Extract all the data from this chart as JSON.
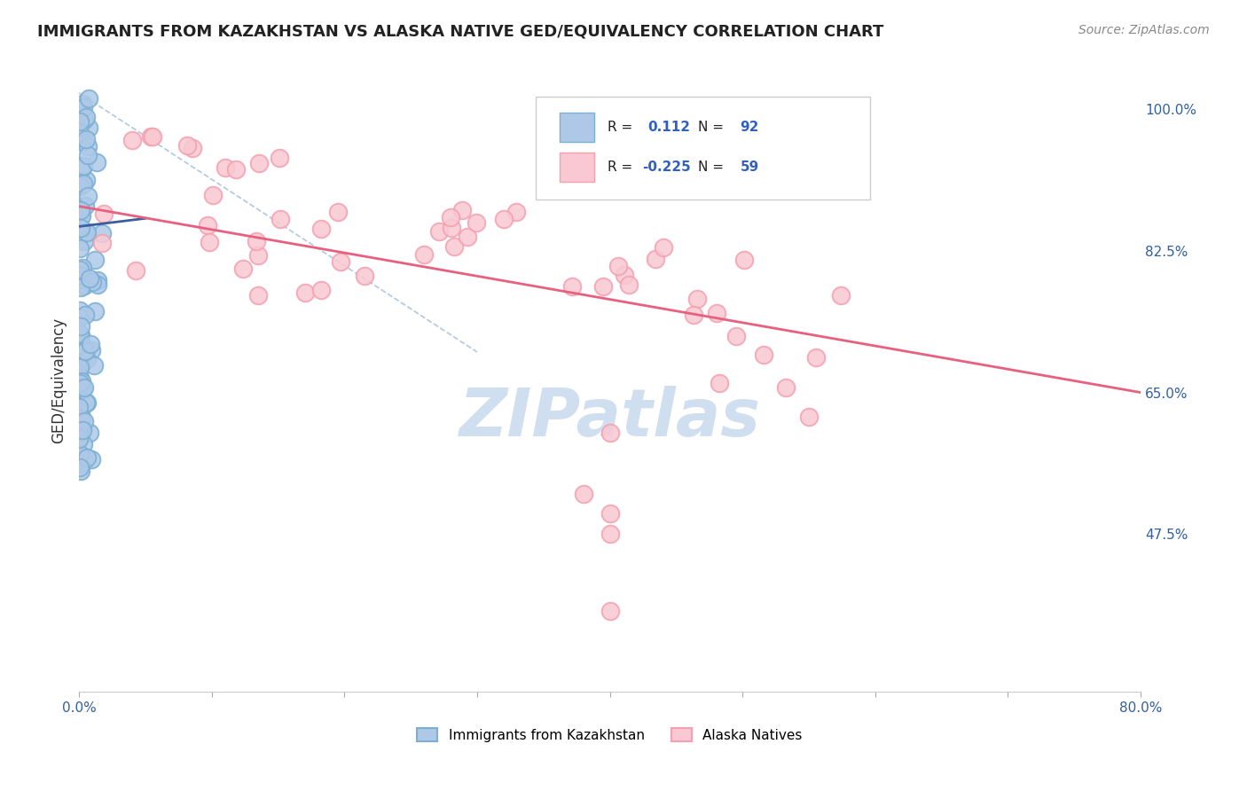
{
  "title": "IMMIGRANTS FROM KAZAKHSTAN VS ALASKA NATIVE GED/EQUIVALENCY CORRELATION CHART",
  "source": "Source: ZipAtlas.com",
  "ylabel": "GED/Equivalency",
  "ytick_labels": [
    "47.5%",
    "65.0%",
    "82.5%",
    "100.0%"
  ],
  "ytick_values": [
    0.475,
    0.65,
    0.825,
    1.0
  ],
  "legend_label1": "Immigrants from Kazakhstan",
  "legend_label2": "Alaska Natives",
  "R1": 0.112,
  "N1": 92,
  "R2": -0.225,
  "N2": 59,
  "blue_color": "#7bafd4",
  "blue_fill": "#aec9e8",
  "pink_color": "#f4a0b0",
  "pink_fill": "#f9c8d2",
  "blue_line_color": "#3a5fa0",
  "pink_line_color": "#e86080",
  "dashed_line_color": "#b0c8e0",
  "watermark_color": "#d0dff0",
  "xmin": 0.0,
  "xmax": 0.8,
  "ymin": 0.28,
  "ymax": 1.05,
  "blue_trend_x": [
    0.0,
    0.05
  ],
  "blue_trend_y": [
    0.855,
    0.865
  ],
  "pink_trend_x": [
    0.0,
    0.8
  ],
  "pink_trend_y": [
    0.88,
    0.65
  ]
}
